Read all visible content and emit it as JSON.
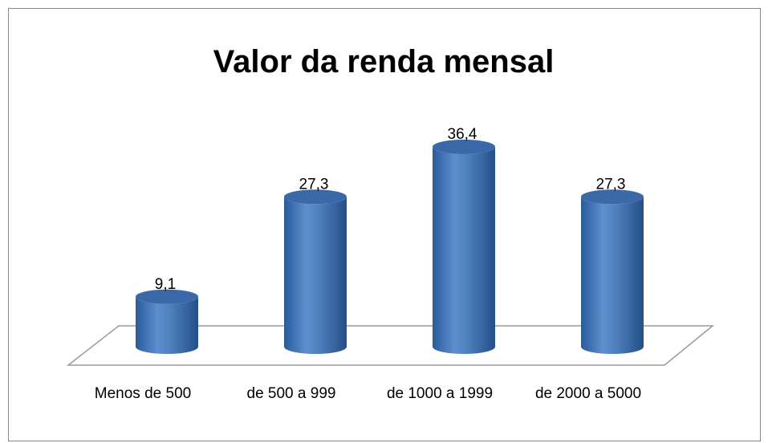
{
  "chart_data": {
    "type": "bar3d",
    "title": "Valor da renda mensal",
    "categories": [
      "Menos de 500",
      "de 500 a 999",
      "de 1000 a 1999",
      "de 2000 a 5000"
    ],
    "values": [
      9.1,
      27.3,
      36.4,
      27.3
    ],
    "value_labels": [
      "9,1",
      "27,3",
      "36,4",
      "27,3"
    ],
    "color": "#4f81bd"
  }
}
